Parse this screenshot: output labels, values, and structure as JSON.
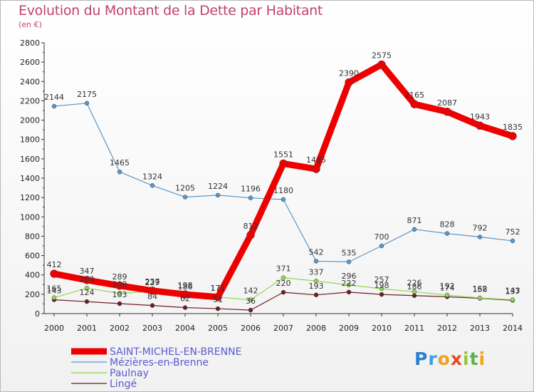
{
  "title": "Evolution du Montant de la Dette par Habitant",
  "subtitle": "(en €)",
  "logo": {
    "text": "Proxiti",
    "colors": [
      "#2f7fd0",
      "#3aa0e0",
      "#f0a020",
      "#e24b2a",
      "#9ac43a",
      "#59b44a",
      "#f3a319"
    ]
  },
  "chart_data": {
    "type": "line",
    "x": [
      2000,
      2001,
      2002,
      2003,
      2004,
      2005,
      2006,
      2007,
      2008,
      2009,
      2010,
      2011,
      2012,
      2013,
      2014
    ],
    "ylim": [
      0,
      2800
    ],
    "yticks": [
      0,
      200,
      400,
      600,
      800,
      1000,
      1200,
      1400,
      1600,
      1800,
      2000,
      2200,
      2400,
      2600,
      2800
    ],
    "grid": false,
    "legend": "bottom-left",
    "series": [
      {
        "name": "Lingé",
        "color": "#6b1f24",
        "values": [
          143,
          124,
          103,
          84,
          62,
          51,
          36,
          220,
          193,
          222,
          198,
          186,
          174,
          158,
          137
        ]
      },
      {
        "name": "Paulnay",
        "color": "#90d650",
        "values": [
          165,
          263,
          209,
          229,
          186,
          171,
          142,
          371,
          337,
          296,
          257,
          226,
          192,
          162,
          143
        ]
      },
      {
        "name": "Mézières-en-Brenne",
        "color": "#5a97c9",
        "values": [
          2144,
          2175,
          1465,
          1324,
          1205,
          1224,
          1196,
          1180,
          542,
          535,
          700,
          871,
          828,
          792,
          752
        ]
      },
      {
        "name": "SAINT-MICHEL-EN-BRENNE",
        "color": "#ee0000",
        "values": [
          412,
          347,
          289,
          237,
          198,
          171,
          812,
          1551,
          1495,
          2390,
          2575,
          2165,
          2087,
          1943,
          1835
        ]
      }
    ],
    "legend_order": [
      "SAINT-MICHEL-EN-BRENNE",
      "Mézières-en-Brenne",
      "Paulnay",
      "Lingé"
    ]
  }
}
